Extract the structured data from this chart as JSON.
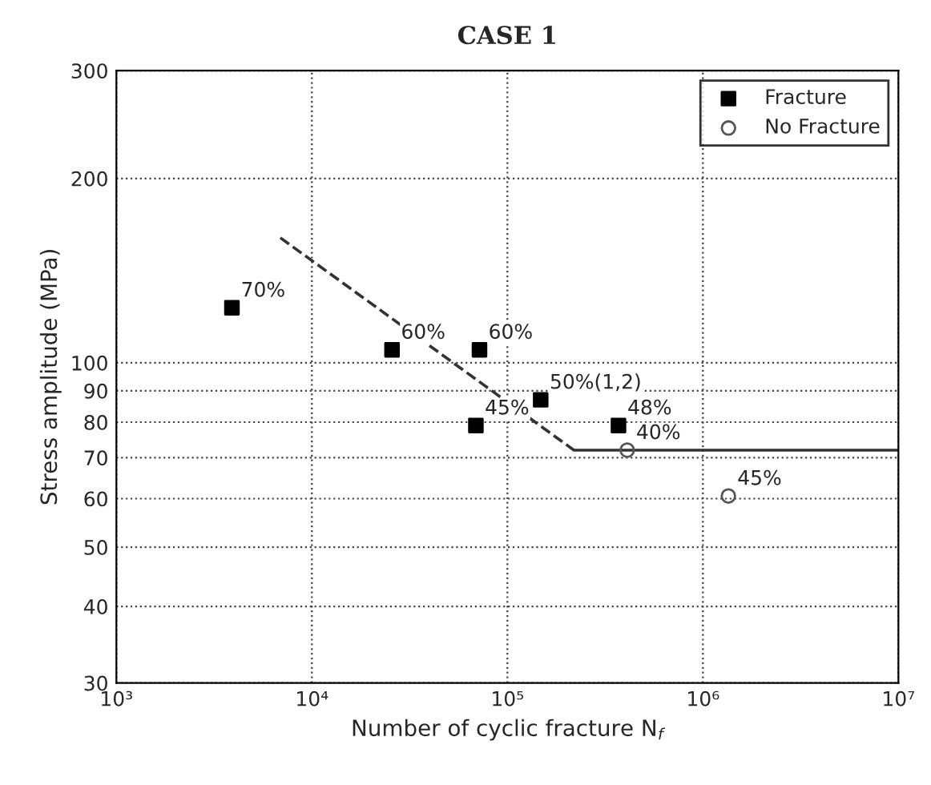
{
  "chart_data": {
    "type": "scatter",
    "title": "CASE 1",
    "xlabel": "Number of cyclic fracture N$_{f}$",
    "ylabel": "Stress amplitude (MPa)",
    "log": "xy",
    "xlim": [
      1000,
      10000000
    ],
    "ylim": [
      30,
      300
    ],
    "xticks": [
      {
        "value": 1000,
        "label": "10³"
      },
      {
        "value": 10000,
        "label": "10⁴"
      },
      {
        "value": 100000,
        "label": "10⁵"
      },
      {
        "value": 1000000,
        "label": "10⁶"
      },
      {
        "value": 10000000,
        "label": "10⁷"
      }
    ],
    "yticks": [
      30,
      40,
      50,
      60,
      70,
      80,
      90,
      100,
      200,
      300
    ],
    "grid": true,
    "legend": "top right",
    "series": [
      {
        "name": "Fracture",
        "marker": "square",
        "color": "#000000",
        "x": [
          3900,
          25700,
          72000,
          69000,
          148000,
          370000
        ],
        "values": [
          123,
          105,
          105,
          79,
          87,
          79
        ]
      },
      {
        "name": "No Fracture",
        "marker": "circle",
        "color": "#555555",
        "x": [
          410000,
          1350000
        ],
        "values": [
          72,
          60.6
        ]
      },
      {
        "type": "line",
        "line_style": "dashed",
        "color": "#333333",
        "x": [
          6900,
          219000
        ],
        "values": [
          160,
          72
        ]
      },
      {
        "type": "line",
        "line_style": "solid",
        "color": "#333333",
        "x": [
          219000,
          10000000
        ],
        "values": [
          72,
          72
        ]
      }
    ],
    "annotations": [
      {
        "text": "70%",
        "x": 3900,
        "y": 123
      },
      {
        "text": "60%",
        "x": 25700,
        "y": 105
      },
      {
        "text": "60%",
        "x": 72000,
        "y": 105
      },
      {
        "text": "45%",
        "x": 69000,
        "y": 79
      },
      {
        "text": "50%(1,2)",
        "x": 148000,
        "y": 87
      },
      {
        "text": "48%",
        "x": 370000,
        "y": 79
      },
      {
        "text": "40%",
        "x": 410000,
        "y": 72
      },
      {
        "text": "45%",
        "x": 1350000,
        "y": 60.6
      }
    ]
  }
}
